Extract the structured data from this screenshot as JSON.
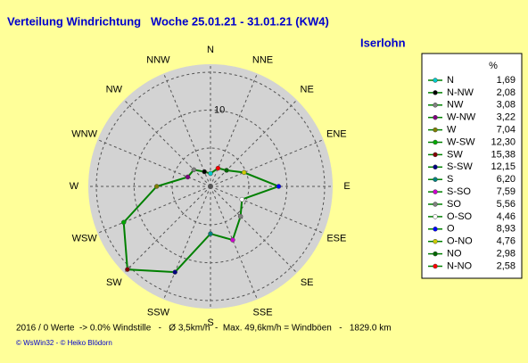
{
  "chart_data": {
    "type": "radar",
    "title": "Verteilung Windrichtung   Woche 25.01.21 - 31.01.21 (KW4)",
    "subtitle": "Iserlohn",
    "categories": [
      "N",
      "NNE",
      "NE",
      "ENE",
      "E",
      "ESE",
      "SE",
      "SSE",
      "S",
      "SSW",
      "SW",
      "WSW",
      "W",
      "WNW",
      "NW",
      "NNW"
    ],
    "values": [
      1.69,
      2.58,
      2.98,
      4.76,
      8.93,
      4.46,
      5.56,
      7.59,
      6.2,
      12.15,
      15.38,
      12.3,
      7.04,
      3.22,
      3.08,
      2.08
    ],
    "point_colors": [
      "#00cccc",
      "#ff0000",
      "#006600",
      "#cccc00",
      "#0000ff",
      "#ffffff",
      "#808080",
      "#cc00cc",
      "#008080",
      "#000080",
      "#800000",
      "#00aa00",
      "#808000",
      "#800080",
      "#808080",
      "#000000"
    ],
    "color": "#008000",
    "rlim": [
      0,
      16
    ],
    "rticks": [
      10
    ]
  },
  "legend": {
    "header": "%",
    "rows": [
      {
        "name": "N",
        "color": "#00cccc",
        "value": "1,69"
      },
      {
        "name": "N-NW",
        "color": "#000000",
        "value": "2,08"
      },
      {
        "name": "NW",
        "color": "#808080",
        "value": "3,08"
      },
      {
        "name": "W-NW",
        "color": "#800080",
        "value": "3,22"
      },
      {
        "name": "W",
        "color": "#808000",
        "value": "7,04"
      },
      {
        "name": "W-SW",
        "color": "#00aa00",
        "value": "12,30"
      },
      {
        "name": "SW",
        "color": "#800000",
        "value": "15,38"
      },
      {
        "name": "S-SW",
        "color": "#000080",
        "value": "12,15"
      },
      {
        "name": "S",
        "color": "#008080",
        "value": "6,20"
      },
      {
        "name": "S-SO",
        "color": "#cc00cc",
        "value": "7,59"
      },
      {
        "name": "SO",
        "color": "#808080",
        "value": "5,56"
      },
      {
        "name": "O-SO",
        "color": "#ffffff",
        "value": "4,46"
      },
      {
        "name": "O",
        "color": "#0000ff",
        "value": "8,93"
      },
      {
        "name": "O-NO",
        "color": "#cccc00",
        "value": "4,76"
      },
      {
        "name": "NO",
        "color": "#006600",
        "value": "2,98"
      },
      {
        "name": "N-NO",
        "color": "#ff0000",
        "value": "2,58"
      }
    ]
  },
  "footer": {
    "stats": "2016 / 0 Werte  -> 0.0% Windstille   -   Ø 3,5km/h  -  Max. 49,6km/h = Windböen   -   1829.0 km",
    "credit": "© WsWin32  - © Heiko Blödorn"
  }
}
